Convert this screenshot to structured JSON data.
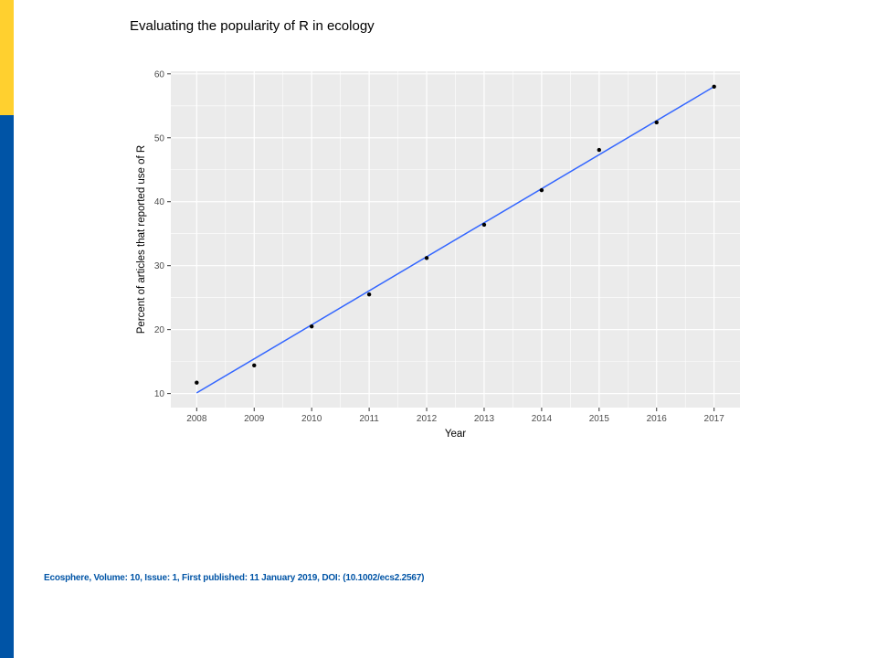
{
  "slide": {
    "title": "Evaluating the popularity of R in ecology",
    "citation": "Ecosphere, Volume: 10, Issue: 1, First published: 11 January 2019, DOI: (10.1002/ecs2.2567)"
  },
  "colors": {
    "accent_yellow": "#ffd02f",
    "accent_blue": "#0054a6",
    "panel_background": "#ebebeb",
    "grid": "#ffffff",
    "fit_line": "#3366ff",
    "points": "#000000"
  },
  "chart_data": {
    "type": "scatter",
    "title": "",
    "xlabel": "Year",
    "ylabel": "Percent of articles that reported use of R",
    "x": [
      2008,
      2009,
      2010,
      2011,
      2012,
      2013,
      2014,
      2015,
      2016,
      2017
    ],
    "y": [
      11.7,
      14.4,
      20.5,
      25.5,
      31.2,
      36.4,
      41.8,
      48.1,
      52.4,
      58.0
    ],
    "x_ticks": [
      "2008",
      "2009",
      "2010",
      "2011",
      "2012",
      "2013",
      "2014",
      "2015",
      "2016",
      "2017"
    ],
    "y_ticks": [
      "10",
      "20",
      "30",
      "40",
      "50",
      "60"
    ],
    "xlim": [
      2007.55,
      2017.45
    ],
    "ylim": [
      7.8,
      60.4
    ],
    "grid": true,
    "legend": "none",
    "fit_line": {
      "type": "linear",
      "x": [
        2008,
        2017
      ],
      "y": [
        10.1,
        58.0
      ]
    }
  }
}
